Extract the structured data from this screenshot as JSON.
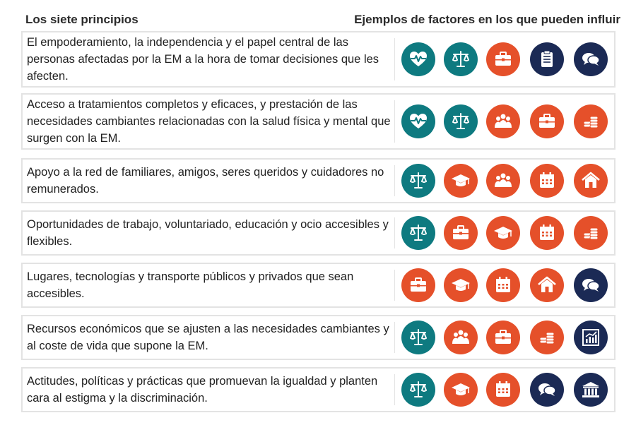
{
  "header": {
    "left": "Los siete principios",
    "right": "Ejemplos de factores en los  que pueden influir"
  },
  "colors": {
    "teal": "#0e7a80",
    "orange": "#e5502a",
    "navy": "#1b2a55",
    "border": "#e3e3e3"
  },
  "rows": [
    {
      "text": "El empoderamiento, la independencia y el papel central de las personas afectadas por la EM a la hora de tomar decisiones que les afecten.",
      "icons": [
        "heartbeat-icon",
        "scales-icon",
        "briefcase-icon",
        "clipboard-icon",
        "speech-bubbles-icon"
      ]
    },
    {
      "text": "Acceso a tratamientos completos y eficaces, y prestación de las necesidades cambiantes relacionadas con la salud física y mental que surgen con la EM.",
      "icons": [
        "heartbeat-icon",
        "scales-icon",
        "people-icon",
        "briefcase-icon",
        "coins-icon"
      ]
    },
    {
      "text": "Apoyo a la red de familiares, amigos, seres queridos y cuidadores no remunerados.",
      "icons": [
        "scales-icon",
        "graduation-cap-icon",
        "people-icon",
        "calendar-icon",
        "home-icon"
      ]
    },
    {
      "text": "Oportunidades de trabajo, voluntariado, educación y ocio accesibles y flexibles.",
      "icons": [
        "scales-icon",
        "briefcase-icon",
        "graduation-cap-icon",
        "calendar-icon",
        "coins-icon"
      ]
    },
    {
      "text": "Lugares, tecnologías y transporte públicos y privados que sean accesibles.",
      "icons": [
        "briefcase-icon",
        "graduation-cap-icon",
        "calendar-icon",
        "home-icon",
        "speech-bubbles-icon"
      ]
    },
    {
      "text": "Recursos económicos que se ajusten a las necesidades cambiantes y al coste de vida que supone la EM.",
      "icons": [
        "scales-icon",
        "people-icon",
        "briefcase-icon",
        "coins-icon",
        "bar-chart-icon"
      ]
    },
    {
      "text": "Actitudes, políticas y prácticas que promuevan la igualdad y planten cara al estigma y la discriminación.",
      "icons": [
        "scales-icon",
        "graduation-cap-icon",
        "calendar-icon",
        "speech-bubbles-icon",
        "government-building-icon"
      ]
    }
  ]
}
